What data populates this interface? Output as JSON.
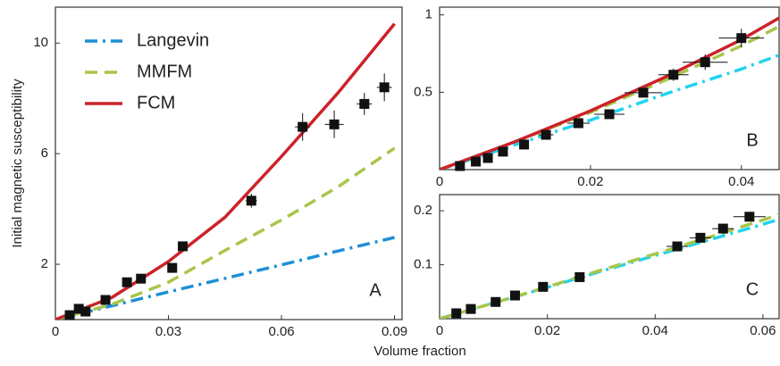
{
  "chart_data": [
    {
      "type": "line",
      "label": "A",
      "xlabel": "Volume fraction",
      "ylabel": "Initial magnetic susceptibility",
      "xlim": [
        0,
        0.092
      ],
      "ylim": [
        0,
        11.3
      ],
      "xticks": [
        0,
        0.03,
        0.06,
        0.09
      ],
      "yticks": [
        2,
        6,
        10
      ],
      "legend": "upper left",
      "series": [
        {
          "name": "Langevin",
          "type": "line",
          "color": "#1e8fd6",
          "dash": "dashdot",
          "x": [
            0,
            0.015,
            0.03,
            0.045,
            0.06,
            0.075,
            0.09
          ],
          "values": [
            0,
            0.5,
            1.0,
            1.49,
            1.98,
            2.48,
            2.97
          ]
        },
        {
          "name": "MMFM",
          "type": "line",
          "color": "#a8c64a",
          "dash": "dash",
          "x": [
            0,
            0.015,
            0.03,
            0.045,
            0.06,
            0.075,
            0.09
          ],
          "values": [
            0,
            0.55,
            1.35,
            2.5,
            3.6,
            4.8,
            6.2
          ]
        },
        {
          "name": "FCM",
          "type": "line",
          "color": "#cc2229",
          "dash": "solid",
          "x": [
            0,
            0.015,
            0.03,
            0.045,
            0.06,
            0.075,
            0.09
          ],
          "values": [
            0,
            0.8,
            2.1,
            3.7,
            5.9,
            8.2,
            10.7
          ]
        },
        {
          "type": "scatter",
          "color": "#111111",
          "x": [
            0.0038,
            0.0062,
            0.008,
            0.0133,
            0.019,
            0.0227,
            0.031,
            0.0338,
            0.052,
            0.0656,
            0.074,
            0.082,
            0.0873
          ],
          "values": [
            0.16,
            0.39,
            0.29,
            0.71,
            1.35,
            1.48,
            1.87,
            2.65,
            4.3,
            6.97,
            7.06,
            7.8,
            8.4
          ],
          "xerr": [
            0,
            0,
            0,
            0,
            0,
            0,
            0,
            0,
            0.0015,
            0.002,
            0.0025,
            0.002,
            0.002
          ],
          "yerr": [
            0,
            0,
            0,
            0,
            0,
            0,
            0,
            0,
            0.25,
            0.5,
            0.5,
            0.4,
            0.5
          ]
        }
      ]
    },
    {
      "type": "line",
      "label": "B",
      "xlim": [
        0,
        0.045
      ],
      "ylim": [
        0,
        1.05
      ],
      "xticks": [
        0,
        0.02,
        0.04
      ],
      "yticks": [
        0.5,
        1
      ],
      "series": [
        {
          "type": "line",
          "color": "#22d3ee",
          "dash": "dashdot",
          "x": [
            0,
            0.01,
            0.02,
            0.03,
            0.04,
            0.045
          ],
          "values": [
            0,
            0.16,
            0.32,
            0.49,
            0.65,
            0.74
          ]
        },
        {
          "type": "line",
          "color": "#a8c64a",
          "dash": "dash",
          "x": [
            0,
            0.01,
            0.02,
            0.03,
            0.04,
            0.045
          ],
          "values": [
            0,
            0.18,
            0.37,
            0.58,
            0.8,
            0.925
          ]
        },
        {
          "type": "line",
          "color": "#cc2229",
          "dash": "solid",
          "x": [
            0,
            0.01,
            0.02,
            0.03,
            0.04,
            0.045
          ],
          "values": [
            0,
            0.18,
            0.38,
            0.6,
            0.84,
            0.98
          ]
        },
        {
          "type": "scatter",
          "color": "#111111",
          "x": [
            0.0027,
            0.0048,
            0.0064,
            0.0084,
            0.0112,
            0.0141,
            0.0184,
            0.0225,
            0.027,
            0.031,
            0.0352,
            0.04
          ],
          "values": [
            0.023,
            0.052,
            0.075,
            0.116,
            0.162,
            0.225,
            0.3,
            0.358,
            0.497,
            0.613,
            0.694,
            0.85
          ],
          "xerr": [
            0,
            0,
            0,
            0,
            0,
            0.001,
            0.0015,
            0.002,
            0.0025,
            0.002,
            0.003,
            0.003
          ],
          "yerr": [
            0,
            0,
            0,
            0,
            0,
            0.02,
            0.03,
            0.03,
            0.03,
            0.04,
            0.05,
            0.06
          ]
        }
      ]
    },
    {
      "type": "line",
      "label": "C",
      "xlim": [
        0,
        0.063
      ],
      "ylim": [
        0,
        0.23
      ],
      "xticks": [
        0,
        0.02,
        0.04,
        0.06
      ],
      "yticks": [
        0.1,
        0.2
      ],
      "series": [
        {
          "type": "line",
          "color": "#22d3ee",
          "dash": "dashdot",
          "x": [
            0,
            0.01,
            0.02,
            0.03,
            0.04,
            0.05,
            0.06,
            0.063
          ],
          "values": [
            0,
            0.029,
            0.058,
            0.088,
            0.117,
            0.146,
            0.175,
            0.184
          ]
        },
        {
          "type": "line",
          "color": "#a8c64a",
          "dash": "dash",
          "x": [
            0,
            0.01,
            0.02,
            0.03,
            0.04,
            0.05,
            0.06,
            0.063
          ],
          "values": [
            0,
            0.029,
            0.059,
            0.09,
            0.12,
            0.151,
            0.183,
            0.193
          ]
        },
        {
          "type": "scatter",
          "color": "#111111",
          "x": [
            0.0031,
            0.0058,
            0.0104,
            0.014,
            0.0192,
            0.026,
            0.0441,
            0.0484,
            0.0526,
            0.0575
          ],
          "values": [
            0.01,
            0.018,
            0.031,
            0.043,
            0.059,
            0.077,
            0.134,
            0.15,
            0.167,
            0.189
          ],
          "xerr": [
            0,
            0,
            0,
            0,
            0.0005,
            0.001,
            0.002,
            0.002,
            0.002,
            0.003
          ],
          "yerr": [
            0,
            0,
            0,
            0,
            0.002,
            0.003,
            0.004,
            0.006,
            0.007,
            0.007
          ]
        }
      ]
    }
  ]
}
